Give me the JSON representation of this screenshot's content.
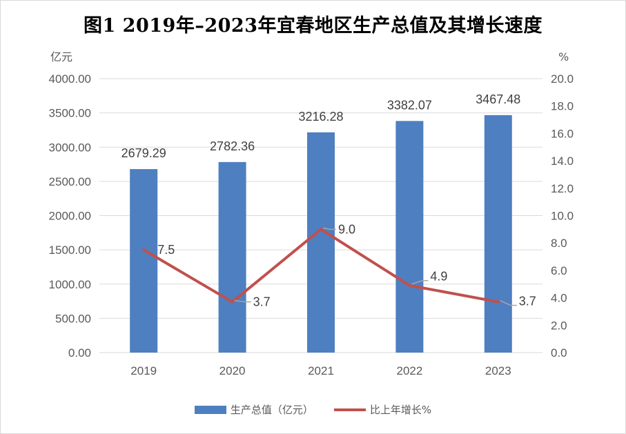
{
  "title": "图1  2019年–2023年宜春地区生产总值及其增长速度",
  "left_unit": "亿元",
  "right_unit": "%",
  "legend": {
    "bar_label": "生产总值（亿元）",
    "line_label": "比上年增长%"
  },
  "colors": {
    "bar": "#4e7fc0",
    "line": "#c0504d",
    "grid": "#d9d9d9",
    "leader": "#a6a6a6"
  },
  "chart_data": {
    "type": "bar",
    "categories": [
      "2019",
      "2020",
      "2021",
      "2022",
      "2023"
    ],
    "series": [
      {
        "name": "生产总值（亿元）",
        "type": "bar",
        "axis": "left",
        "values": [
          2679.29,
          2782.36,
          3216.28,
          3382.07,
          3467.48
        ]
      },
      {
        "name": "比上年增长%",
        "type": "line",
        "axis": "right",
        "values": [
          7.5,
          3.7,
          9.0,
          4.9,
          3.7
        ]
      }
    ],
    "bar_labels": [
      "2679.29",
      "2782.36",
      "3216.28",
      "3382.07",
      "3467.48"
    ],
    "line_labels": [
      "7.5",
      "3.7",
      "9.0",
      "4.9",
      "3.7"
    ],
    "ylim_left": [
      0,
      4000
    ],
    "ylim_right": [
      0,
      20
    ],
    "left_ticks": [
      "0.00",
      "500.00",
      "1000.00",
      "1500.00",
      "2000.00",
      "2500.00",
      "3000.00",
      "3500.00",
      "4000.00"
    ],
    "right_ticks": [
      "0.0",
      "2.0",
      "4.0",
      "6.0",
      "8.0",
      "10.0",
      "12.0",
      "14.0",
      "16.0",
      "18.0",
      "20.0"
    ],
    "grid": true,
    "legend_position": "bottom"
  }
}
